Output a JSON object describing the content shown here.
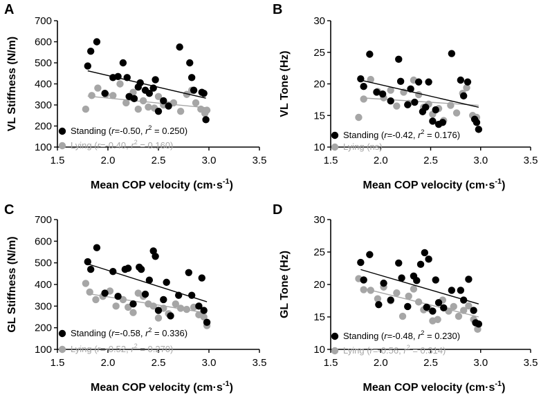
{
  "colors": {
    "standing": "#000000",
    "lying": "#a6a6a6"
  },
  "chart_data": [
    {
      "type": "scatter",
      "panel": "A",
      "xlabel": "Mean COP velocity (cm·s",
      "xlabel_sup": "-1",
      "xlabel_end": ")",
      "ylabel": "VL Stiffness (N/m)",
      "xlim": [
        1.5,
        3.5
      ],
      "ylim": [
        100,
        700
      ],
      "xticks": [
        1.5,
        2.0,
        2.5,
        3.0,
        3.5
      ],
      "xtick_labels": [
        "1.5",
        "2.0",
        "2.5",
        "3.0",
        "3.5"
      ],
      "yticks": [
        100,
        200,
        300,
        400,
        500,
        600,
        700
      ],
      "ytick_labels": [
        "100",
        "200",
        "300",
        "400",
        "500",
        "600",
        "700"
      ],
      "series": [
        {
          "name": "Standing",
          "color": "#000000",
          "legend": {
            "name": "Standing (",
            "r_sym": "r",
            "r_val": "=-0.50, ",
            "r2_sym": "r",
            "r2_sup": "2",
            "r2_val": " = 0.250)"
          },
          "x": [
            1.8,
            1.83,
            1.89,
            1.97,
            2.05,
            2.1,
            2.15,
            2.19,
            2.21,
            2.26,
            2.3,
            2.32,
            2.37,
            2.41,
            2.45,
            2.47,
            2.5,
            2.55,
            2.6,
            2.71,
            2.81,
            2.83,
            2.85,
            2.93,
            2.95,
            2.97
          ],
          "y": [
            485,
            555,
            600,
            355,
            430,
            435,
            500,
            430,
            340,
            330,
            385,
            405,
            370,
            355,
            380,
            420,
            270,
            320,
            295,
            575,
            500,
            430,
            370,
            360,
            355,
            230
          ],
          "fit": {
            "x": [
              1.8,
              2.97
            ],
            "y": [
              462,
              332
            ]
          }
        },
        {
          "name": "Lying",
          "color": "#a6a6a6",
          "legend": {
            "name": "Lying (",
            "r_sym": "r",
            "r_val": "=-0.40, ",
            "r2_sym": "r",
            "r2_sup": "2",
            "r2_val": " = 0.160)"
          },
          "x": [
            1.78,
            1.84,
            1.9,
            1.98,
            2.05,
            2.12,
            2.18,
            2.25,
            2.3,
            2.35,
            2.4,
            2.46,
            2.5,
            2.55,
            2.6,
            2.65,
            2.72,
            2.78,
            2.83,
            2.87,
            2.92,
            2.96,
            2.98
          ],
          "y": [
            280,
            345,
            380,
            350,
            345,
            400,
            310,
            360,
            280,
            320,
            290,
            285,
            340,
            300,
            300,
            310,
            270,
            350,
            370,
            310,
            280,
            260,
            275
          ],
          "fit": {
            "x": [
              1.8,
              2.97
            ],
            "y": [
              342,
              287
            ]
          }
        }
      ]
    },
    {
      "type": "scatter",
      "panel": "B",
      "xlabel": "Mean COP velocity (cm·s",
      "xlabel_sup": "-1",
      "xlabel_end": ")",
      "ylabel": "VL Tone (Hz)",
      "xlim": [
        1.5,
        3.5
      ],
      "ylim": [
        10,
        30
      ],
      "xticks": [
        1.5,
        2.0,
        2.5,
        3.0,
        3.5
      ],
      "xtick_labels": [
        "1.5",
        "2.0",
        "2.5",
        "3.0",
        "3.5"
      ],
      "yticks": [
        10,
        15,
        20,
        25,
        30
      ],
      "ytick_labels": [
        "10",
        "15",
        "20",
        "25",
        "30"
      ],
      "series": [
        {
          "name": "Standing",
          "color": "#000000",
          "legend": {
            "name": "Standing (",
            "r_sym": "r",
            "r_val": "=-0.42, ",
            "r2_sym": "r",
            "r2_sup": "2",
            "r2_val": " = 0.176)"
          },
          "x": [
            1.8,
            1.83,
            1.89,
            1.96,
            2.02,
            2.1,
            2.18,
            2.2,
            2.27,
            2.3,
            2.34,
            2.38,
            2.42,
            2.45,
            2.48,
            2.52,
            2.55,
            2.58,
            2.62,
            2.71,
            2.8,
            2.83,
            2.87,
            2.94,
            2.96,
            2.98
          ],
          "y": [
            20.8,
            19.6,
            24.7,
            18.7,
            18.4,
            17.3,
            23.9,
            20.4,
            16.7,
            19.2,
            17.1,
            20.3,
            15.6,
            16.3,
            20.3,
            14.1,
            15.9,
            13.6,
            13.9,
            24.8,
            20.6,
            18.1,
            20.3,
            14.4,
            13.9,
            12.8
          ],
          "fit": {
            "x": [
              1.8,
              2.98
            ],
            "y": [
              20.6,
              16.3
            ]
          }
        },
        {
          "name": "Lying",
          "color": "#a6a6a6",
          "legend": {
            "name": "Lying (ns)"
          },
          "x": [
            1.78,
            1.83,
            1.9,
            1.97,
            2.03,
            2.1,
            2.16,
            2.23,
            2.28,
            2.33,
            2.38,
            2.43,
            2.48,
            2.52,
            2.58,
            2.63,
            2.7,
            2.76,
            2.82,
            2.86,
            2.92,
            2.96
          ],
          "y": [
            14.7,
            17.6,
            20.7,
            18.8,
            17.8,
            19.0,
            16.5,
            18.7,
            16.9,
            20.6,
            18.3,
            16.3,
            16.8,
            15.2,
            16.1,
            14.2,
            16.6,
            15.4,
            18.5,
            19.4,
            15.0,
            14.7
          ],
          "fit": {
            "x": [
              1.8,
              2.98
            ],
            "y": [
              17.8,
              16.6
            ]
          }
        }
      ]
    },
    {
      "type": "scatter",
      "panel": "C",
      "xlabel": "Mean COP velocity (cm·s",
      "xlabel_sup": "-1",
      "xlabel_end": ")",
      "ylabel": "GL Stiffness (N/m)",
      "xlim": [
        1.5,
        3.5
      ],
      "ylim": [
        100,
        700
      ],
      "xticks": [
        1.5,
        2.0,
        2.5,
        3.0,
        3.5
      ],
      "xtick_labels": [
        "1.5",
        "2.0",
        "2.5",
        "3.0",
        "3.5"
      ],
      "yticks": [
        100,
        200,
        300,
        400,
        500,
        600,
        700
      ],
      "ytick_labels": [
        "100",
        "200",
        "300",
        "400",
        "500",
        "600",
        "700"
      ],
      "series": [
        {
          "name": "Standing",
          "color": "#000000",
          "legend": {
            "name": "Standing (",
            "r_sym": "r",
            "r_val": "=-0.58, ",
            "r2_sym": "r",
            "r2_sup": "2",
            "r2_val": " = 0.336)"
          },
          "x": [
            1.8,
            1.83,
            1.89,
            1.97,
            2.05,
            2.1,
            2.17,
            2.2,
            2.25,
            2.31,
            2.33,
            2.37,
            2.41,
            2.45,
            2.47,
            2.5,
            2.55,
            2.58,
            2.62,
            2.7,
            2.8,
            2.83,
            2.9,
            2.93,
            2.95,
            2.98
          ],
          "y": [
            505,
            470,
            570,
            360,
            460,
            345,
            470,
            475,
            310,
            480,
            470,
            355,
            420,
            555,
            530,
            280,
            330,
            410,
            255,
            350,
            455,
            350,
            300,
            430,
            280,
            225
          ],
          "fit": {
            "x": [
              1.8,
              2.98
            ],
            "y": [
              495,
              320
            ]
          }
        },
        {
          "name": "Lying",
          "color": "#a6a6a6",
          "legend": {
            "name": "Lying (",
            "r_sym": "r",
            "r_val": "=-0.52, ",
            "r2_sym": "r",
            "r2_sup": "2",
            "r2_val": " = 0.270)"
          },
          "x": [
            1.78,
            1.82,
            1.88,
            1.95,
            2.02,
            2.08,
            2.15,
            2.2,
            2.25,
            2.3,
            2.35,
            2.4,
            2.45,
            2.5,
            2.55,
            2.6,
            2.67,
            2.72,
            2.78,
            2.85,
            2.9,
            2.95,
            2.98
          ],
          "y": [
            405,
            365,
            330,
            345,
            370,
            300,
            330,
            295,
            270,
            360,
            345,
            310,
            300,
            245,
            290,
            265,
            310,
            290,
            285,
            295,
            260,
            250,
            210
          ],
          "fit": {
            "x": [
              1.8,
              2.98
            ],
            "y": [
              358,
              268
            ]
          }
        }
      ]
    },
    {
      "type": "scatter",
      "panel": "D",
      "xlabel": "Mean COP velocity (cm·s",
      "xlabel_sup": "-1",
      "xlabel_end": ")",
      "ylabel": "GL Tone (Hz)",
      "xlim": [
        1.5,
        3.5
      ],
      "ylim": [
        10,
        30
      ],
      "xticks": [
        1.5,
        2.0,
        2.5,
        3.0,
        3.5
      ],
      "xtick_labels": [
        "1.5",
        "2.0",
        "2.5",
        "3.0",
        "3.5"
      ],
      "yticks": [
        10,
        15,
        20,
        25,
        30
      ],
      "ytick_labels": [
        "10",
        "15",
        "20",
        "25",
        "30"
      ],
      "series": [
        {
          "name": "Standing",
          "color": "#000000",
          "legend": {
            "name": "Standing (",
            "r_sym": "r",
            "r_val": "=-0.48, ",
            "r2_sym": "r",
            "r2_sup": "2",
            "r2_val": " = 0.230)"
          },
          "x": [
            1.8,
            1.83,
            1.89,
            1.98,
            2.03,
            2.1,
            2.18,
            2.21,
            2.27,
            2.33,
            2.36,
            2.4,
            2.44,
            2.46,
            2.48,
            2.52,
            2.55,
            2.58,
            2.63,
            2.71,
            2.8,
            2.83,
            2.88,
            2.93,
            2.95,
            2.98
          ],
          "y": [
            23.4,
            20.7,
            24.6,
            16.9,
            20.2,
            17.6,
            23.3,
            21.0,
            16.6,
            21.3,
            20.6,
            23.1,
            24.9,
            16.5,
            23.9,
            15.9,
            20.7,
            17.2,
            16.4,
            19.1,
            19.1,
            17.6,
            20.8,
            16.0,
            14.1,
            13.9
          ],
          "fit": {
            "x": [
              1.8,
              2.98
            ],
            "y": [
              22.3,
              17.0
            ]
          }
        },
        {
          "name": "Lying",
          "color": "#a6a6a6",
          "legend": {
            "name": "Lying (",
            "r_sym": "r",
            "r_val": "=-0.56, ",
            "r2_sym": "r",
            "r2_sup": "2",
            "r2_val": " = 0.314)"
          },
          "x": [
            1.78,
            1.83,
            1.9,
            1.97,
            2.03,
            2.1,
            2.16,
            2.22,
            2.28,
            2.33,
            2.38,
            2.43,
            2.48,
            2.52,
            2.57,
            2.62,
            2.68,
            2.73,
            2.78,
            2.83,
            2.88,
            2.93,
            2.97
          ],
          "y": [
            20.9,
            19.2,
            19.1,
            17.8,
            19.6,
            17.5,
            18.7,
            15.1,
            18.2,
            19.3,
            17.3,
            16.1,
            16.3,
            14.4,
            14.6,
            17.6,
            15.9,
            16.6,
            15.1,
            16.0,
            16.7,
            14.6,
            13.1
          ],
          "fit": {
            "x": [
              1.8,
              2.98
            ],
            "y": [
              19.5,
              15.0
            ]
          }
        }
      ]
    }
  ]
}
